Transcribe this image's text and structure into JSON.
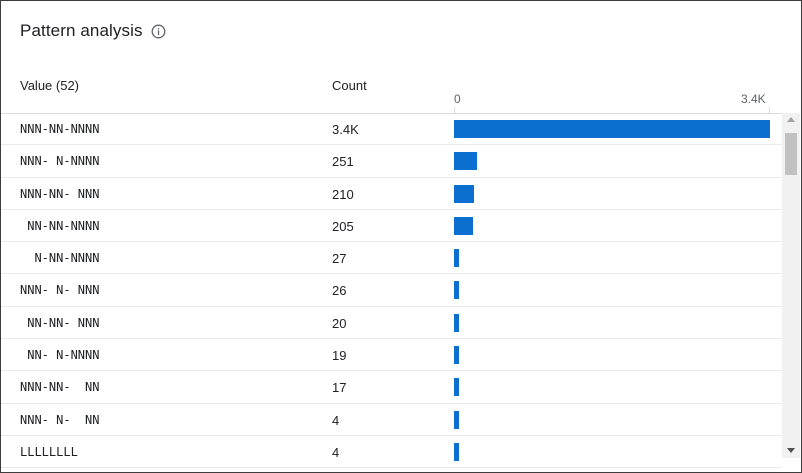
{
  "panel": {
    "title": "Pattern analysis",
    "info_icon": "info-icon"
  },
  "columns": {
    "value_header": "Value (52)",
    "count_header": "Count",
    "axis_min_label": "0",
    "axis_max_label": "3.4K",
    "axis_max_value": 3400
  },
  "colors": {
    "bar": "#0b6fcf"
  },
  "rows": [
    {
      "value": "NNN-NN-NNNN",
      "count_label": "3.4K",
      "count": 3400
    },
    {
      "value": "NNN- N-NNNN",
      "count_label": "251",
      "count": 251
    },
    {
      "value": "NNN-NN- NNN",
      "count_label": "210",
      "count": 210
    },
    {
      "value": " NN-NN-NNNN",
      "count_label": "205",
      "count": 205
    },
    {
      "value": "  N-NN-NNNN",
      "count_label": "27",
      "count": 27
    },
    {
      "value": "NNN- N- NNN",
      "count_label": "26",
      "count": 26
    },
    {
      "value": " NN-NN- NNN",
      "count_label": "20",
      "count": 20
    },
    {
      "value": " NN- N-NNNN",
      "count_label": "19",
      "count": 19
    },
    {
      "value": "NNN-NN-  NN",
      "count_label": "17",
      "count": 17
    },
    {
      "value": "NNN- N-  NN",
      "count_label": "4",
      "count": 4
    },
    {
      "value": "LLLLLLLL",
      "count_label": "4",
      "count": 4
    }
  ]
}
